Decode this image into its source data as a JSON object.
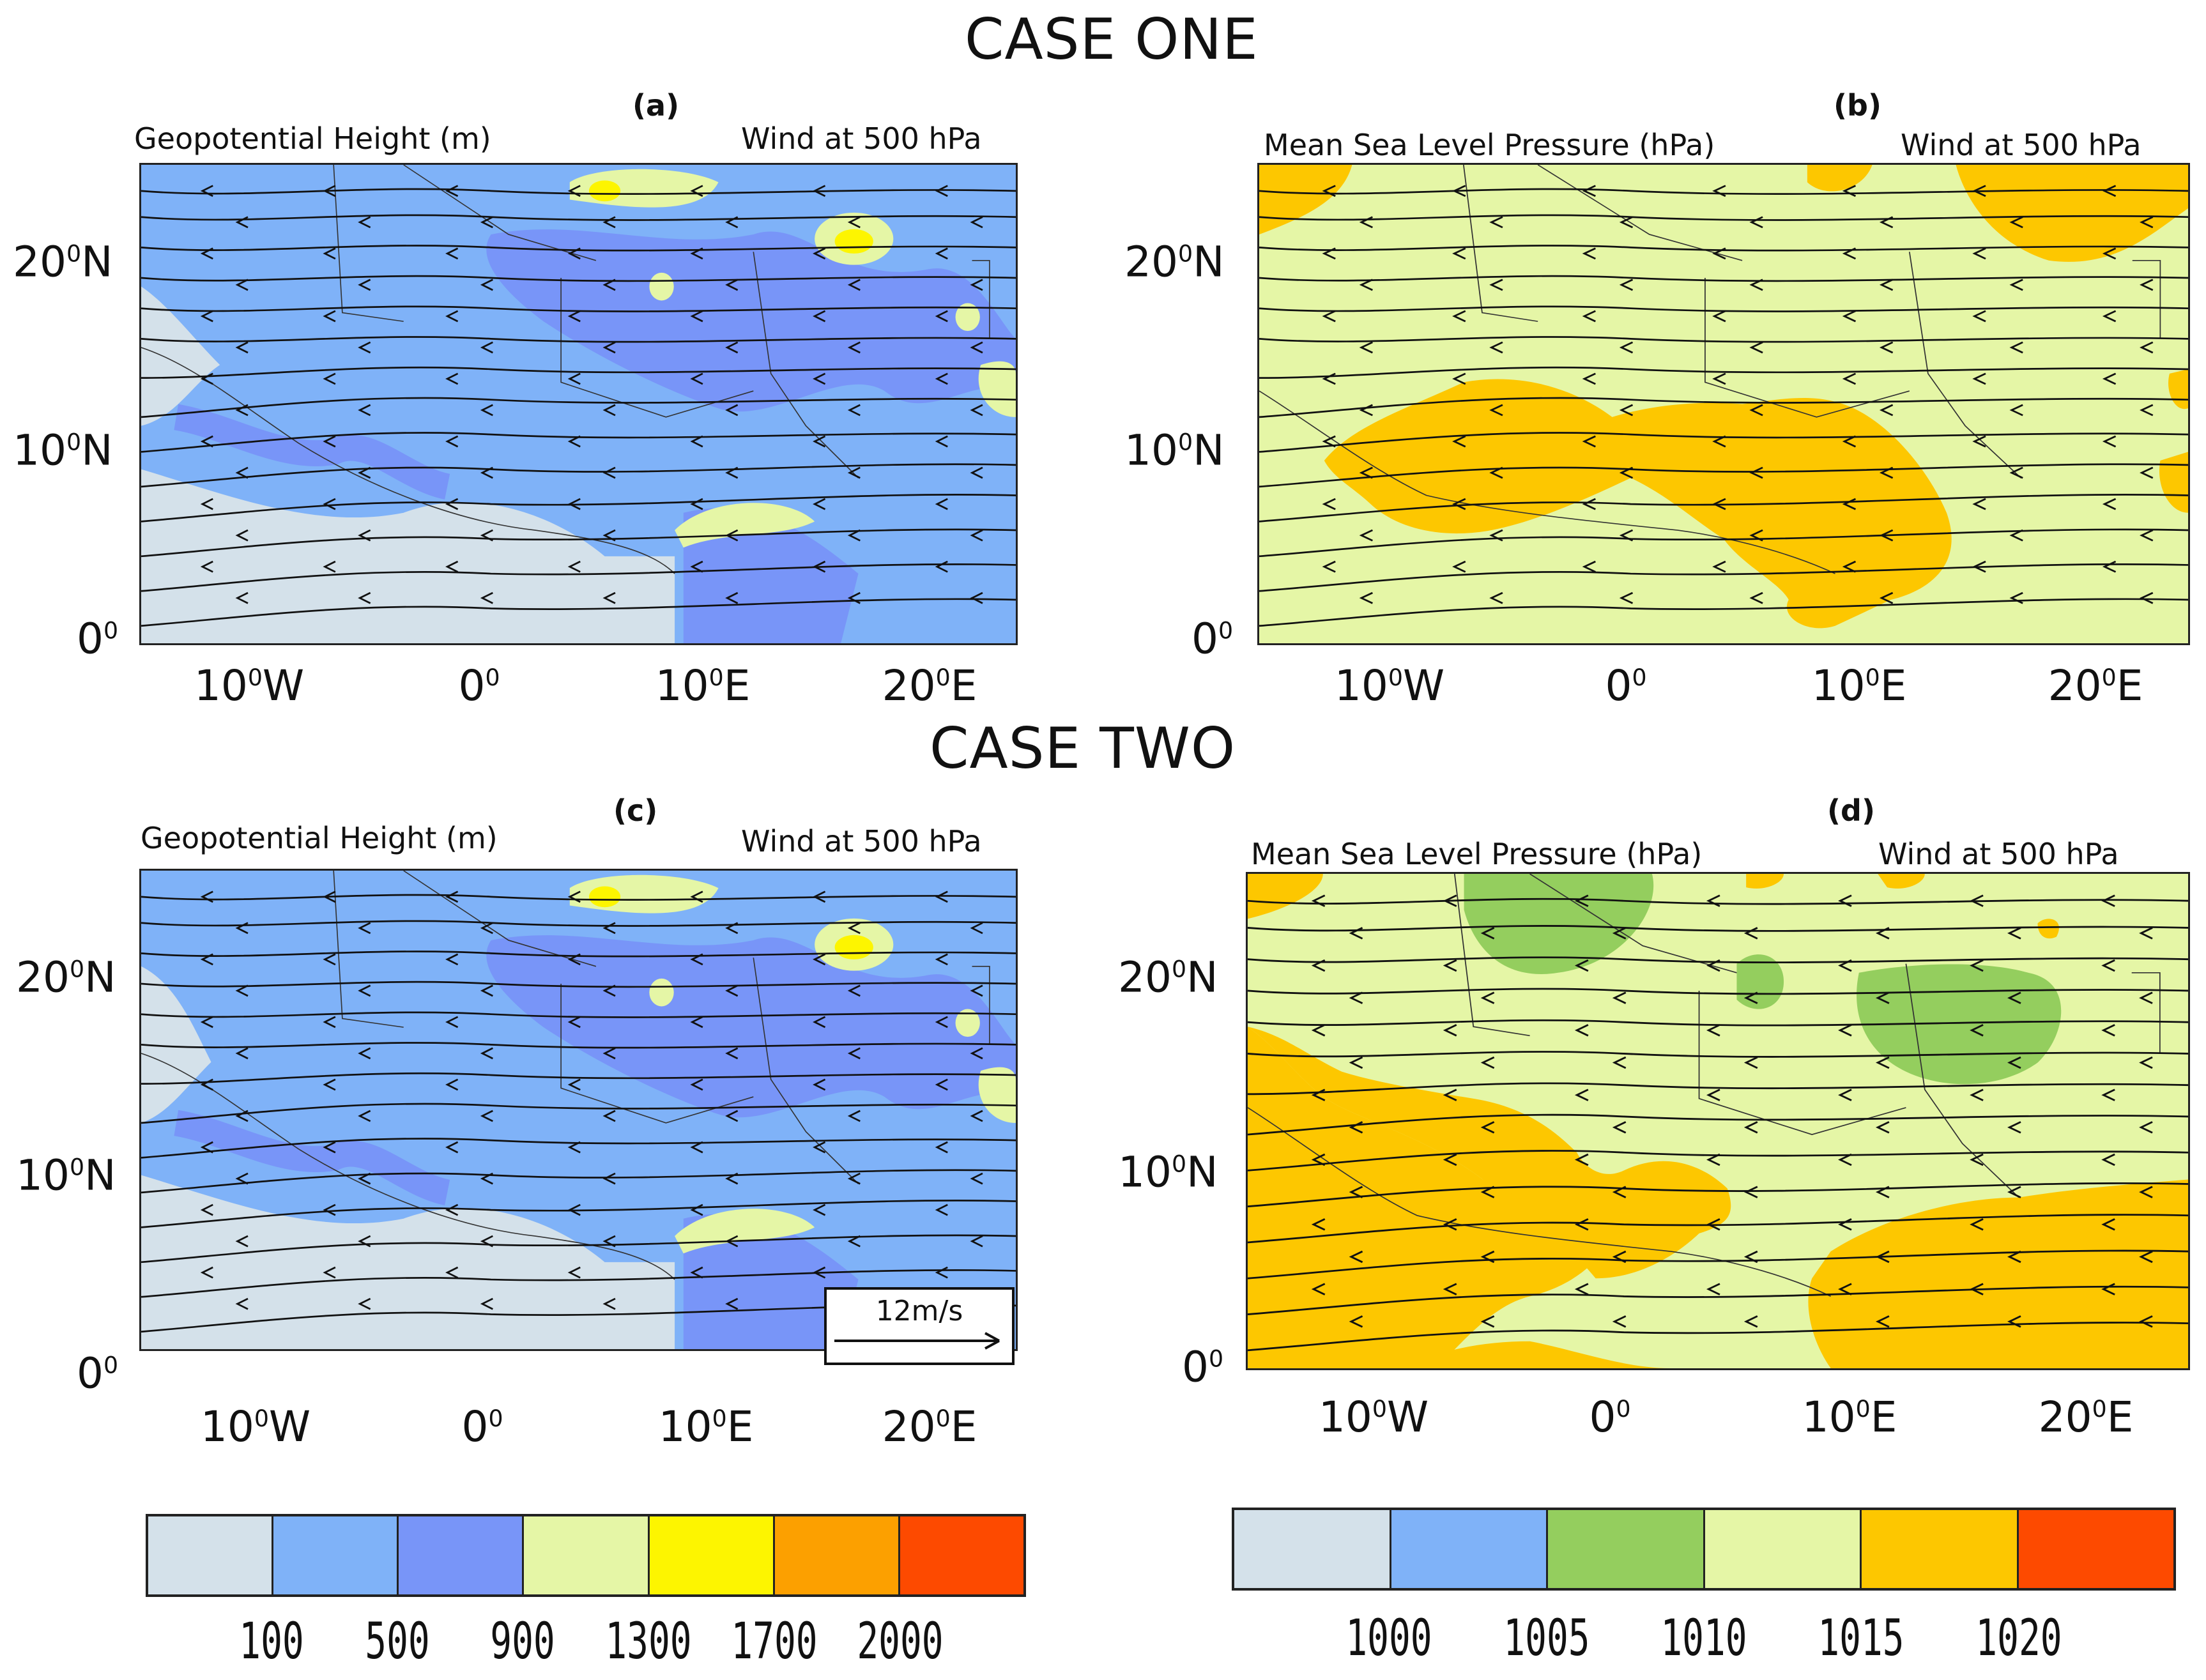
{
  "case_one_title": "CASE ONE",
  "case_two_title": "CASE TWO",
  "panels": {
    "a": {
      "letter": "(a)",
      "left": "Geopotential Height (m)",
      "right": "Wind at 500 hPa"
    },
    "b": {
      "letter": "(b)",
      "left": "Mean Sea Level Pressure (hPa)",
      "right": "Wind at 500 hPa"
    },
    "c": {
      "letter": "(c)",
      "left": "Geopotential Height (m)",
      "right": "Wind at 500 hPa"
    },
    "d": {
      "letter": "(d)",
      "left": "Mean Sea Level Pressure (hPa)",
      "right": "Wind at 500 hPa"
    }
  },
  "ticks": {
    "x": [
      "10",
      "0",
      "10",
      "20"
    ],
    "x_suffix": [
      "W",
      "",
      "E",
      "E"
    ],
    "y": [
      "20",
      "10",
      "0"
    ],
    "y_suffix": [
      "N",
      "N",
      ""
    ],
    "degree": "0"
  },
  "scale_arrow": {
    "label": "12m/s"
  },
  "legend_gph": {
    "labels": [
      "100",
      "500",
      "900",
      "1300",
      "1700",
      "2000"
    ],
    "colors": [
      "#d4e1ea",
      "#7fb2f8",
      "#7895f8",
      "#e5f6a6",
      "#fdf500",
      "#fca000",
      "#fd4a00"
    ]
  },
  "legend_mslp": {
    "labels": [
      "1000",
      "1005",
      "1010",
      "1015",
      "1020"
    ],
    "colors": [
      "#d4e1ea",
      "#7fb2f8",
      "#94ce5e",
      "#e5f6a6",
      "#fdc700",
      "#fd4a00"
    ]
  },
  "map_colors": {
    "sea_light": "#d4e1ea",
    "blue_500": "#7fb2f8",
    "blue_900": "#7895f8",
    "yellow_green": "#e5f6a6",
    "yellow": "#fdf500",
    "orange": "#fdc700",
    "green": "#94ce5e"
  }
}
